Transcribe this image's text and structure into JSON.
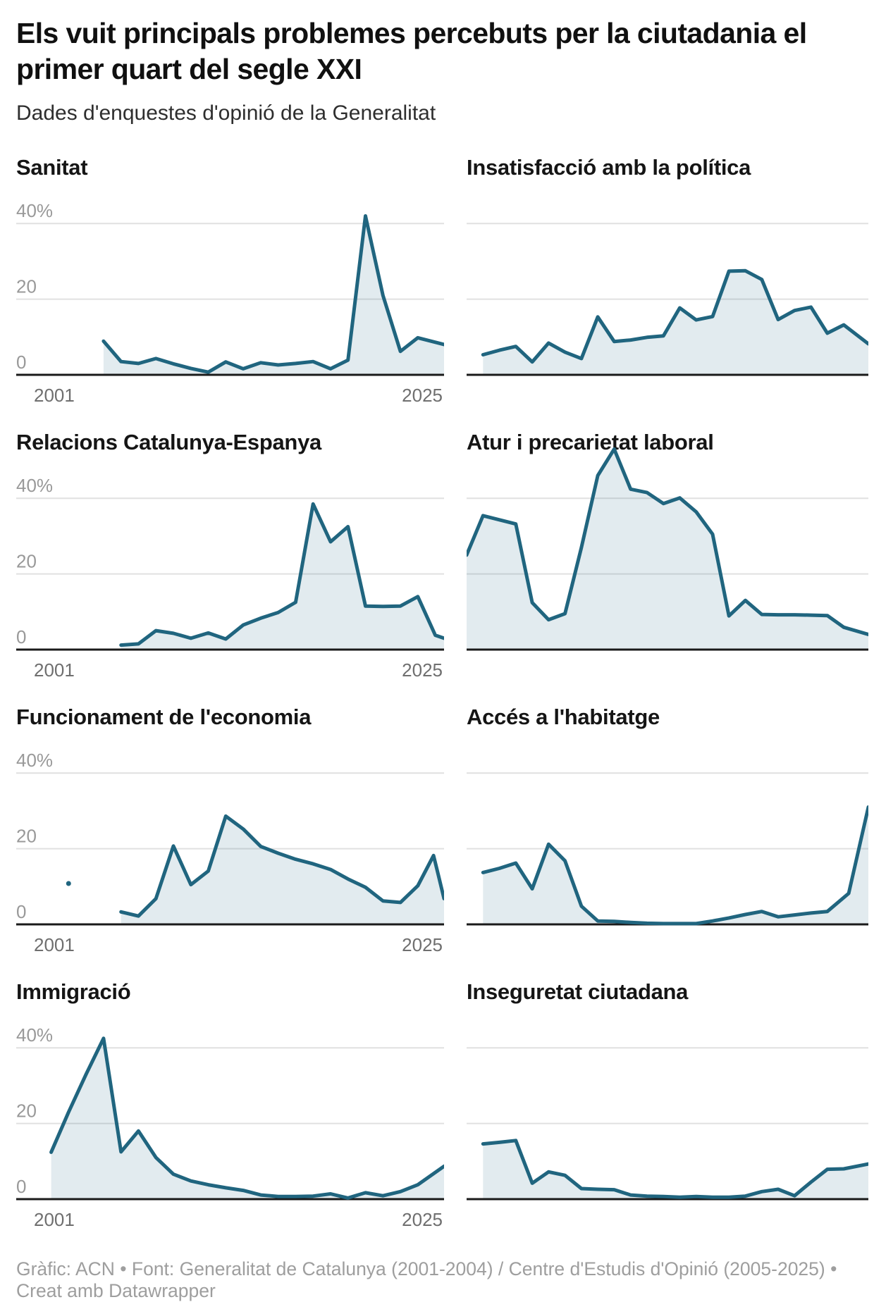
{
  "header": {
    "title": "Els vuit principals problemes percebuts per la ciutadania el primer quart del segle XXI",
    "subtitle": "Dades d'enquestes d'opinió de la Generalitat"
  },
  "footer": {
    "text": "Gràfic: ACN • Font: Generalitat de Catalunya (2001-2004) / Centre d'Estudis d'Opinió (2005-2025) • Creat amb Datawrapper"
  },
  "chart_data": {
    "type": "line",
    "layout": "small-multiples-2-columns",
    "unit": "%",
    "x_domain": [
      2001,
      2025.5
    ],
    "ylim": [
      0,
      57
    ],
    "grid": true,
    "y_ticks": [
      {
        "value": 40,
        "label": "40%"
      },
      {
        "value": 20,
        "label": "20"
      },
      {
        "value": 0,
        "label": "0"
      }
    ],
    "x_tick_labels": [
      "2001",
      "2025"
    ],
    "style": {
      "line_color": "#20657f",
      "area_color": "rgba(32,101,128,0.13)",
      "grid_color": "#e0e0e0",
      "axis_color": "#1a1a1a",
      "y_label_color": "#999999",
      "x_label_color": "#6f6f6f"
    },
    "charts": [
      {
        "id": "sanitat",
        "title": "Sanitat",
        "series": [
          [
            2006,
            8.9
          ],
          [
            2007,
            3.5
          ],
          [
            2008,
            3.0
          ],
          [
            2009,
            4.3
          ],
          [
            2010,
            2.9
          ],
          [
            2011,
            1.7
          ],
          [
            2012,
            0.7
          ],
          [
            2013,
            3.4
          ],
          [
            2014,
            1.6
          ],
          [
            2015,
            3.2
          ],
          [
            2016,
            2.6
          ],
          [
            2017,
            3.0
          ],
          [
            2018,
            3.5
          ],
          [
            2019,
            1.6
          ],
          [
            2020,
            3.9
          ],
          [
            2021,
            42
          ],
          [
            2022,
            21
          ],
          [
            2023,
            6.2
          ],
          [
            2024,
            9.8
          ],
          [
            2025.5,
            8
          ]
        ]
      },
      {
        "id": "insatisfaccio-politica",
        "title": "Insatisfacció amb la política",
        "series": [
          [
            2002,
            5.3
          ],
          [
            2003,
            6.5
          ],
          [
            2004,
            7.5
          ],
          [
            2005,
            3.4
          ],
          [
            2006,
            8.4
          ],
          [
            2007,
            6
          ],
          [
            2008,
            4.3
          ],
          [
            2009,
            15.3
          ],
          [
            2010,
            8.8
          ],
          [
            2011,
            9.2
          ],
          [
            2012,
            9.9
          ],
          [
            2013,
            10.3
          ],
          [
            2014,
            17.7
          ],
          [
            2015,
            14.5
          ],
          [
            2016,
            15.4
          ],
          [
            2017,
            27.4
          ],
          [
            2018,
            27.5
          ],
          [
            2019,
            25.2
          ],
          [
            2020,
            14.6
          ],
          [
            2021,
            17
          ],
          [
            2022,
            17.9
          ],
          [
            2023,
            11
          ],
          [
            2024,
            13.2
          ],
          [
            2025.5,
            8.2
          ]
        ]
      },
      {
        "id": "relacions-catalunya-espanya",
        "title": "Relacions Catalunya-Espanya",
        "series": [
          [
            2007,
            1.2
          ],
          [
            2008,
            1.5
          ],
          [
            2009,
            5
          ],
          [
            2010,
            4.3
          ],
          [
            2011,
            3
          ],
          [
            2012,
            4.4
          ],
          [
            2013,
            2.8
          ],
          [
            2014,
            6.5
          ],
          [
            2015,
            8.3
          ],
          [
            2016,
            9.8
          ],
          [
            2017,
            12.5
          ],
          [
            2018,
            38.5
          ],
          [
            2019,
            28.5
          ],
          [
            2020,
            32.5
          ],
          [
            2021,
            11.5
          ],
          [
            2022,
            11.4
          ],
          [
            2023,
            11.5
          ],
          [
            2024,
            14
          ],
          [
            2025,
            3.8
          ],
          [
            2025.5,
            3
          ]
        ]
      },
      {
        "id": "atur-precarietat",
        "title": "Atur i precarietat laboral",
        "series": [
          [
            2001,
            25
          ],
          [
            2002,
            35.4
          ],
          [
            2003,
            34.3
          ],
          [
            2004,
            33.2
          ],
          [
            2005,
            12.4
          ],
          [
            2006,
            7.9
          ],
          [
            2007,
            9.5
          ],
          [
            2008,
            27
          ],
          [
            2009,
            46
          ],
          [
            2010,
            53
          ],
          [
            2011,
            42.4
          ],
          [
            2012,
            41.5
          ],
          [
            2013,
            38.6
          ],
          [
            2014,
            40.1
          ],
          [
            2015,
            36.4
          ],
          [
            2016,
            30.5
          ],
          [
            2017,
            8.9
          ],
          [
            2018,
            13
          ],
          [
            2019,
            9.3
          ],
          [
            2020,
            9.2
          ],
          [
            2021,
            9.2
          ],
          [
            2022,
            9.1
          ],
          [
            2023,
            9
          ],
          [
            2024,
            5.9
          ],
          [
            2025.5,
            4
          ]
        ]
      },
      {
        "id": "funcionament-economia",
        "title": "Funcionament de l'economia",
        "isolated_point": [
          2004,
          10.8
        ],
        "series": [
          [
            2007,
            3.3
          ],
          [
            2008,
            2.2
          ],
          [
            2009,
            6.8
          ],
          [
            2010,
            20.7
          ],
          [
            2011,
            10.5
          ],
          [
            2012,
            14.1
          ],
          [
            2013,
            28.6
          ],
          [
            2014,
            25.2
          ],
          [
            2015,
            20.6
          ],
          [
            2016,
            18.8
          ],
          [
            2017,
            17.2
          ],
          [
            2018,
            16
          ],
          [
            2019,
            14.5
          ],
          [
            2020,
            12
          ],
          [
            2021,
            9.8
          ],
          [
            2022,
            6.2
          ],
          [
            2023,
            5.8
          ],
          [
            2024,
            10.2
          ],
          [
            2024.9,
            18.2
          ],
          [
            2025.2,
            12.5
          ],
          [
            2025.5,
            6.8
          ]
        ]
      },
      {
        "id": "acces-habitatge",
        "title": "Accés a l'habitatge",
        "series": [
          [
            2002,
            13.7
          ],
          [
            2003,
            14.8
          ],
          [
            2004,
            16.2
          ],
          [
            2005,
            9.4
          ],
          [
            2006,
            21.2
          ],
          [
            2007,
            16.8
          ],
          [
            2008,
            4.8
          ],
          [
            2009,
            0.9
          ],
          [
            2010,
            0.8
          ],
          [
            2011,
            0.5
          ],
          [
            2012,
            0.3
          ],
          [
            2013,
            0.2
          ],
          [
            2014,
            0.2
          ],
          [
            2015,
            0.2
          ],
          [
            2016,
            0.9
          ],
          [
            2017,
            1.7
          ],
          [
            2018,
            2.6
          ],
          [
            2019,
            3.4
          ],
          [
            2020,
            2
          ],
          [
            2021,
            2.5
          ],
          [
            2022,
            3
          ],
          [
            2023,
            3.4
          ],
          [
            2024.3,
            8.2
          ],
          [
            2025.5,
            31
          ]
        ]
      },
      {
        "id": "immigracio",
        "title": "Immigració",
        "series": [
          [
            2003,
            12.4
          ],
          [
            2004,
            23
          ],
          [
            2005,
            33
          ],
          [
            2006,
            42.5
          ],
          [
            2007,
            12.5
          ],
          [
            2008,
            18
          ],
          [
            2009,
            11
          ],
          [
            2010,
            6.6
          ],
          [
            2011,
            4.8
          ],
          [
            2012,
            3.8
          ],
          [
            2013,
            3
          ],
          [
            2014,
            2.3
          ],
          [
            2015,
            1.1
          ],
          [
            2016,
            0.7
          ],
          [
            2017,
            0.7
          ],
          [
            2018,
            0.8
          ],
          [
            2019,
            1.4
          ],
          [
            2020,
            0.3
          ],
          [
            2021,
            1.7
          ],
          [
            2022,
            0.9
          ],
          [
            2023,
            2
          ],
          [
            2024,
            3.8
          ],
          [
            2025.5,
            8.7
          ]
        ]
      },
      {
        "id": "inseguretat-ciutadana",
        "title": "Inseguretat ciutadana",
        "series": [
          [
            2002,
            14.6
          ],
          [
            2003,
            15
          ],
          [
            2004,
            15.5
          ],
          [
            2005,
            4.2
          ],
          [
            2006,
            7.2
          ],
          [
            2007,
            6.3
          ],
          [
            2008,
            2.8
          ],
          [
            2009,
            2.6
          ],
          [
            2010,
            2.5
          ],
          [
            2011,
            1.1
          ],
          [
            2012,
            0.8
          ],
          [
            2013,
            0.7
          ],
          [
            2014,
            0.5
          ],
          [
            2015,
            0.7
          ],
          [
            2016,
            0.5
          ],
          [
            2017,
            0.5
          ],
          [
            2018,
            0.8
          ],
          [
            2019,
            2
          ],
          [
            2020,
            2.6
          ],
          [
            2021,
            0.9
          ],
          [
            2022,
            4.5
          ],
          [
            2023,
            7.9
          ],
          [
            2024,
            8
          ],
          [
            2025.5,
            9.3
          ]
        ]
      }
    ]
  }
}
